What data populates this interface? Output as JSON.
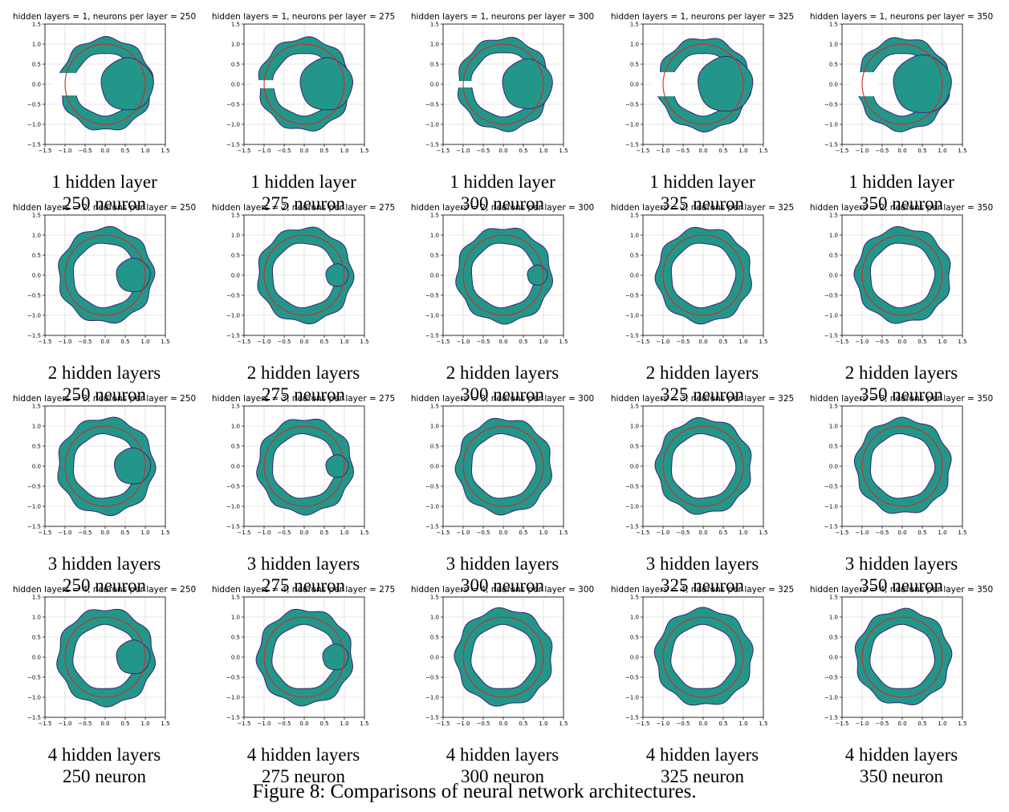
{
  "figure": {
    "caption": "Figure 8: Comparisons of neural network architectures."
  },
  "colors": {
    "fill": "#23968a",
    "outline": "#3b2472",
    "circle": "#d62728",
    "grid": "#d0d0d0"
  },
  "chart_data": {
    "type": "grid-of-region-plots",
    "description_series": "teal = predicted region, red = reference unit circle",
    "xlim": [
      -1.5,
      1.5
    ],
    "ylim": [
      -1.5,
      1.5
    ],
    "xticks": [
      "−1.5",
      "−1.0",
      "−0.5",
      "0.0",
      "0.5",
      "1.0",
      "1.5"
    ],
    "yticks": [
      "1.5",
      "1.0",
      "0.5",
      "0.0",
      "−0.5",
      "−1.0",
      "−1.5"
    ],
    "grid": true,
    "reference_circle_radius": 1.0,
    "rows": [
      {
        "hidden_layers": 1,
        "caption_layers": "1 hidden layer",
        "panels": [
          {
            "title": "hidden layers = 1, neurons per layer = 250",
            "caption_neurons": "250 neuron",
            "ring_inner": 0.78,
            "ring_outer": 1.15,
            "blob_cx": 0.55,
            "blob_r": 0.65,
            "left_notch": 0.28
          },
          {
            "title": "hidden layers = 1, neurons per layer = 275",
            "caption_neurons": "275 neuron",
            "ring_inner": 0.78,
            "ring_outer": 1.15,
            "blob_cx": 0.55,
            "blob_r": 0.65,
            "left_notch": 0.1
          },
          {
            "title": "hidden layers = 1, neurons per layer = 300",
            "caption_neurons": "300 neuron",
            "ring_inner": 0.8,
            "ring_outer": 1.15,
            "blob_cx": 0.6,
            "blob_r": 0.62,
            "left_notch": 0.08
          },
          {
            "title": "hidden layers = 1, neurons per layer = 325",
            "caption_neurons": "325 neuron",
            "ring_inner": 0.78,
            "ring_outer": 1.15,
            "blob_cx": 0.55,
            "blob_r": 0.68,
            "left_notch": 0.3
          },
          {
            "title": "hidden layers = 1, neurons per layer = 350",
            "caption_neurons": "350 neuron",
            "ring_inner": 0.78,
            "ring_outer": 1.15,
            "blob_cx": 0.5,
            "blob_r": 0.72,
            "left_notch": 0.3
          }
        ]
      },
      {
        "hidden_layers": 2,
        "caption_layers": "2 hidden layers",
        "panels": [
          {
            "title": "hidden layers = 2, neurons per layer = 250",
            "caption_neurons": "250 neuron",
            "ring_inner": 0.8,
            "ring_outer": 1.18,
            "blob_cx": 0.7,
            "blob_r": 0.42,
            "left_notch": 0
          },
          {
            "title": "hidden layers = 2, neurons per layer = 275",
            "caption_neurons": "275 neuron",
            "ring_inner": 0.8,
            "ring_outer": 1.18,
            "blob_cx": 0.82,
            "blob_r": 0.28,
            "left_notch": 0
          },
          {
            "title": "hidden layers = 2, neurons per layer = 300",
            "caption_neurons": "300 neuron",
            "ring_inner": 0.8,
            "ring_outer": 1.18,
            "blob_cx": 0.85,
            "blob_r": 0.25,
            "left_notch": 0
          },
          {
            "title": "hidden layers = 2, neurons per layer = 325",
            "caption_neurons": "325 neuron",
            "ring_inner": 0.8,
            "ring_outer": 1.18,
            "blob_cx": 0,
            "blob_r": 0,
            "left_notch": 0
          },
          {
            "title": "hidden layers = 2, neurons per layer = 350",
            "caption_neurons": "350 neuron",
            "ring_inner": 0.8,
            "ring_outer": 1.18,
            "blob_cx": 0,
            "blob_r": 0,
            "left_notch": 0
          }
        ]
      },
      {
        "hidden_layers": 3,
        "caption_layers": "3 hidden layers",
        "panels": [
          {
            "title": "hidden layers = 3, neurons per layer = 250",
            "caption_neurons": "250 neuron",
            "ring_inner": 0.8,
            "ring_outer": 1.2,
            "blob_cx": 0.68,
            "blob_r": 0.45,
            "left_notch": 0
          },
          {
            "title": "hidden layers = 3, neurons per layer = 275",
            "caption_neurons": "275 neuron",
            "ring_inner": 0.8,
            "ring_outer": 1.18,
            "blob_cx": 0.82,
            "blob_r": 0.28,
            "left_notch": 0
          },
          {
            "title": "hidden layers = 3, neurons per layer = 300",
            "caption_neurons": "300 neuron",
            "ring_inner": 0.8,
            "ring_outer": 1.18,
            "blob_cx": 0,
            "blob_r": 0,
            "left_notch": 0
          },
          {
            "title": "hidden layers = 3, neurons per layer = 325",
            "caption_neurons": "325 neuron",
            "ring_inner": 0.8,
            "ring_outer": 1.18,
            "blob_cx": 0,
            "blob_r": 0,
            "left_notch": 0
          },
          {
            "title": "hidden layers = 3, neurons per layer = 350",
            "caption_neurons": "350 neuron",
            "ring_inner": 0.8,
            "ring_outer": 1.18,
            "blob_cx": 0,
            "blob_r": 0,
            "left_notch": 0
          }
        ]
      },
      {
        "hidden_layers": 4,
        "caption_layers": "4 hidden layers",
        "panels": [
          {
            "title": "hidden layers = 4, neurons per layer = 250",
            "caption_neurons": "250 neuron",
            "ring_inner": 0.8,
            "ring_outer": 1.2,
            "blob_cx": 0.7,
            "blob_r": 0.42,
            "left_notch": 0
          },
          {
            "title": "hidden layers = 4, neurons per layer = 275",
            "caption_neurons": "275 neuron",
            "ring_inner": 0.8,
            "ring_outer": 1.18,
            "blob_cx": 0.78,
            "blob_r": 0.32,
            "left_notch": 0
          },
          {
            "title": "hidden layers = 4, neurons per layer = 300",
            "caption_neurons": "300 neuron",
            "ring_inner": 0.8,
            "ring_outer": 1.2,
            "blob_cx": 0,
            "blob_r": 0,
            "left_notch": 0
          },
          {
            "title": "hidden layers = 4, neurons per layer = 325",
            "caption_neurons": "325 neuron",
            "ring_inner": 0.8,
            "ring_outer": 1.2,
            "blob_cx": 0,
            "blob_r": 0,
            "left_notch": 0
          },
          {
            "title": "hidden layers = 4, neurons per layer = 350",
            "caption_neurons": "350 neuron",
            "ring_inner": 0.8,
            "ring_outer": 1.18,
            "blob_cx": 0,
            "blob_r": 0,
            "left_notch": 0
          }
        ]
      }
    ]
  }
}
